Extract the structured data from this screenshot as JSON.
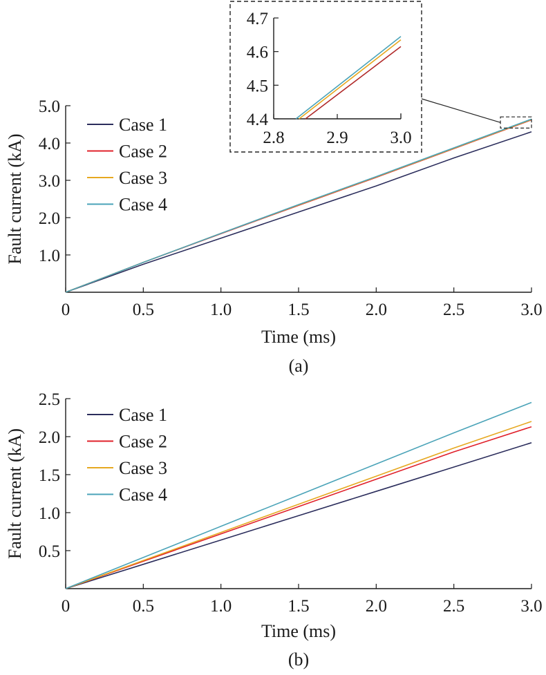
{
  "chart_data": [
    {
      "type": "line",
      "panel_label": "(a)",
      "xlabel": "Time (ms)",
      "ylabel": "Fault current (kA)",
      "xlim": [
        0,
        3.0
      ],
      "ylim": [
        0,
        5.0
      ],
      "xticks": [
        0,
        0.5,
        1.0,
        1.5,
        2.0,
        2.5,
        3.0
      ],
      "xtick_labels": [
        "0",
        "0.5",
        "1.0",
        "1.5",
        "2.0",
        "2.5",
        "3.0"
      ],
      "yticks": [
        1.0,
        2.0,
        3.0,
        4.0,
        5.0
      ],
      "ytick_labels": [
        "1.0",
        "2.0",
        "3.0",
        "4.0",
        "5.0"
      ],
      "legend_position": "top-left",
      "grid": false,
      "series": [
        {
          "name": "Case 1",
          "color": "#2b2d5c",
          "x": [
            0,
            0.5,
            1.0,
            1.5,
            2.0,
            2.5,
            3.0
          ],
          "y": [
            0,
            0.75,
            1.45,
            2.15,
            2.85,
            3.6,
            4.3
          ]
        },
        {
          "name": "Case 2",
          "color": "#e0202a",
          "x": [
            0,
            0.5,
            1.0,
            1.5,
            2.0,
            2.5,
            3.0
          ],
          "y": [
            0,
            0.8,
            1.57,
            2.33,
            3.08,
            3.85,
            4.62
          ]
        },
        {
          "name": "Case 3",
          "color": "#e6a820",
          "x": [
            0,
            0.5,
            1.0,
            1.5,
            2.0,
            2.5,
            3.0
          ],
          "y": [
            0,
            0.8,
            1.58,
            2.34,
            3.09,
            3.86,
            4.63
          ]
        },
        {
          "name": "Case 4",
          "color": "#4aa3b8",
          "x": [
            0,
            0.5,
            1.0,
            1.5,
            2.0,
            2.5,
            3.0
          ],
          "y": [
            0,
            0.8,
            1.58,
            2.35,
            3.1,
            3.87,
            4.64
          ]
        }
      ],
      "inset": {
        "xlim": [
          2.8,
          3.0
        ],
        "ylim": [
          4.4,
          4.7
        ],
        "xticks": [
          2.8,
          2.9,
          3.0
        ],
        "xtick_labels": [
          "2.8",
          "2.9",
          "3.0"
        ],
        "yticks": [
          4.4,
          4.5,
          4.6,
          4.7
        ],
        "ytick_labels": [
          "4.4",
          "4.5",
          "4.6",
          "4.7"
        ],
        "series": [
          {
            "name": "Case 2",
            "color": "#b02828",
            "x": [
              2.85,
              3.0
            ],
            "y": [
              4.4,
              4.615
            ]
          },
          {
            "name": "Case 3",
            "color": "#e6a820",
            "x": [
              2.84,
              3.0
            ],
            "y": [
              4.4,
              4.635
            ]
          },
          {
            "name": "Case 4",
            "color": "#4aa3b8",
            "x": [
              2.835,
              3.0
            ],
            "y": [
              4.4,
              4.645
            ]
          }
        ]
      }
    },
    {
      "type": "line",
      "panel_label": "(b)",
      "xlabel": "Time (ms)",
      "ylabel": "Fault current (kA)",
      "xlim": [
        0,
        3.0
      ],
      "ylim": [
        0,
        2.5
      ],
      "xticks": [
        0,
        0.5,
        1.0,
        1.5,
        2.0,
        2.5,
        3.0
      ],
      "xtick_labels": [
        "0",
        "0.5",
        "1.0",
        "1.5",
        "2.0",
        "2.5",
        "3.0"
      ],
      "yticks": [
        0.5,
        1.0,
        1.5,
        2.0,
        2.5
      ],
      "ytick_labels": [
        "0.5",
        "1.0",
        "1.5",
        "2.0",
        "2.5"
      ],
      "legend_position": "top-left",
      "grid": false,
      "series": [
        {
          "name": "Case 1",
          "color": "#2b2d5c",
          "x": [
            0,
            0.5,
            1.0,
            1.5,
            2.0,
            2.5,
            3.0
          ],
          "y": [
            0,
            0.32,
            0.64,
            0.96,
            1.28,
            1.6,
            1.92
          ]
        },
        {
          "name": "Case 2",
          "color": "#e0202a",
          "x": [
            0,
            0.5,
            1.0,
            1.5,
            2.0,
            2.5,
            3.0
          ],
          "y": [
            0,
            0.36,
            0.72,
            1.08,
            1.44,
            1.8,
            2.13
          ]
        },
        {
          "name": "Case 3",
          "color": "#e6a820",
          "x": [
            0,
            0.5,
            1.0,
            1.5,
            2.0,
            2.5,
            3.0
          ],
          "y": [
            0,
            0.37,
            0.74,
            1.11,
            1.48,
            1.85,
            2.2
          ]
        },
        {
          "name": "Case 4",
          "color": "#4aa3b8",
          "x": [
            0,
            0.5,
            1.0,
            1.5,
            2.0,
            2.5,
            3.0
          ],
          "y": [
            0,
            0.41,
            0.82,
            1.23,
            1.64,
            2.05,
            2.45
          ]
        }
      ]
    }
  ]
}
